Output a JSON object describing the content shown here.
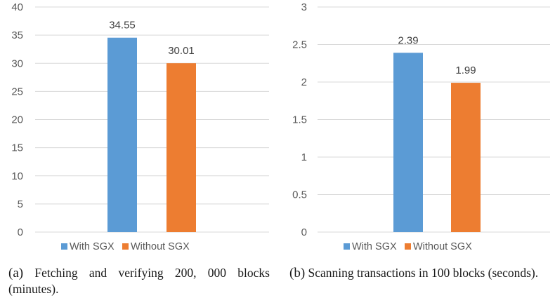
{
  "chart_data": [
    {
      "type": "bar",
      "categories": [
        ""
      ],
      "series": [
        {
          "name": "With SGX",
          "values": [
            34.55
          ]
        },
        {
          "name": "Without SGX",
          "values": [
            30.01
          ]
        }
      ],
      "data_labels": [
        "34.55",
        "30.01"
      ],
      "yticks": [
        "0",
        "5",
        "10",
        "15",
        "20",
        "25",
        "30",
        "35",
        "40"
      ],
      "ylim": [
        0,
        40
      ],
      "title": "",
      "xlabel": "",
      "ylabel": "",
      "grid": true,
      "legend": "bottom",
      "colors": [
        "#5b9bd5",
        "#ed7d31"
      ],
      "caption": {
        "tag": "(a)",
        "text": "Fetching and verifying 200, 000 blocks (minutes)."
      }
    },
    {
      "type": "bar",
      "categories": [
        ""
      ],
      "series": [
        {
          "name": "With SGX",
          "values": [
            2.39
          ]
        },
        {
          "name": "Without SGX",
          "values": [
            1.99
          ]
        }
      ],
      "data_labels": [
        "2.39",
        "1.99"
      ],
      "yticks": [
        "0",
        "0.5",
        "1",
        "1.5",
        "2",
        "2.5",
        "3"
      ],
      "ylim": [
        0,
        3
      ],
      "title": "",
      "xlabel": "",
      "ylabel": "",
      "grid": true,
      "legend": "bottom",
      "colors": [
        "#5b9bd5",
        "#ed7d31"
      ],
      "caption": {
        "tag": "(b)",
        "text": "Scanning transactions in 100 blocks (seconds)."
      }
    }
  ]
}
